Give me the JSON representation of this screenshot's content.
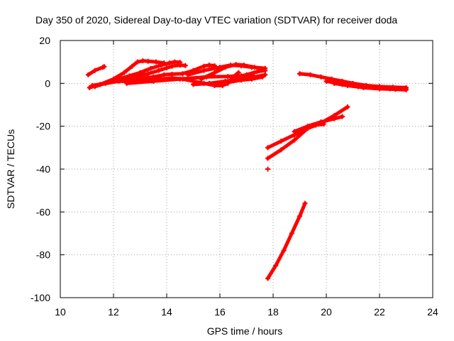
{
  "chart_data": {
    "type": "scatter",
    "title": "Day 350 of 2020, Sidereal Day-to-day VTEC variation (SDTVAR) for receiver doda",
    "xlabel": "GPS time / hours",
    "ylabel": "SDTVAR / TECUs",
    "xlim": [
      10,
      24
    ],
    "ylim": [
      -100,
      20
    ],
    "xticks": [
      10,
      12,
      14,
      16,
      18,
      20,
      22,
      24
    ],
    "yticks": [
      20,
      0,
      -20,
      -40,
      -60,
      -80,
      -100
    ],
    "grid": true,
    "marker": "plus",
    "color": "#ff0000",
    "series": [
      {
        "x": [
          11.05,
          11.3,
          11.6,
          11.65
        ],
        "y": [
          4,
          6,
          7.5,
          7.8
        ]
      },
      {
        "x": [
          11.1,
          11.5,
          12.0,
          12.4,
          12.7,
          12.9,
          13.1,
          13.3,
          13.6,
          13.9
        ],
        "y": [
          -2,
          -0.5,
          2,
          5,
          8,
          10,
          10.5,
          10.3,
          10.0,
          9.5
        ]
      },
      {
        "x": [
          11.2,
          11.7,
          12.2,
          12.6,
          13.0,
          13.4,
          13.8,
          14.1,
          14.3,
          14.5
        ],
        "y": [
          -1,
          0,
          2,
          3.5,
          5,
          7,
          8.5,
          9.5,
          10,
          9.8
        ]
      },
      {
        "x": [
          11.3,
          11.8,
          12.3,
          12.8,
          13.3,
          13.7,
          14.0,
          14.2,
          14.5,
          14.7
        ],
        "y": [
          -1.5,
          0.5,
          1.5,
          3,
          4.5,
          6,
          7.2,
          8,
          8.5,
          8.3
        ]
      },
      {
        "x": [
          11.5,
          12.2,
          12.9,
          13.5,
          13.9,
          14.2,
          14.6,
          15.0,
          15.4,
          15.6,
          15.8
        ],
        "y": [
          -0.5,
          1,
          2,
          3,
          4,
          4.3,
          4.5,
          6,
          8,
          8.5,
          8.2
        ]
      },
      {
        "x": [
          12.0,
          12.6,
          13.2,
          13.8,
          14.2,
          14.6,
          15.0,
          15.4,
          15.8,
          16.1,
          16.3,
          16.5,
          16.7
        ],
        "y": [
          1,
          1,
          1.5,
          2,
          2.5,
          2,
          1,
          0,
          -1,
          -1,
          0,
          3,
          5
        ]
      },
      {
        "x": [
          12.5,
          13.5,
          14.5,
          15.5,
          16.3,
          16.8,
          17.2
        ],
        "y": [
          0,
          1,
          2,
          3,
          3.2,
          3.5,
          4
        ]
      },
      {
        "x": [
          14.8,
          15.4,
          16.0,
          16.4,
          16.8,
          17.2
        ],
        "y": [
          4,
          6,
          7.5,
          8.5,
          8.2,
          7.5
        ]
      },
      {
        "x": [
          15.3,
          15.8,
          16.2,
          16.6,
          16.9,
          17.3,
          17.7
        ],
        "y": [
          2,
          5,
          7.5,
          8.8,
          8.5,
          7.5,
          7
        ]
      },
      {
        "x": [
          15.0,
          15.6,
          16.2,
          16.8,
          17.3,
          17.7
        ],
        "y": [
          -0.5,
          0,
          1,
          2,
          3,
          4
        ]
      },
      {
        "x": [
          15.8,
          16.3,
          16.8,
          17.2,
          17.6
        ],
        "y": [
          -1,
          0.5,
          1.5,
          2,
          3
        ]
      },
      {
        "x": [
          16.6,
          17.0,
          17.4,
          17.7
        ],
        "y": [
          3,
          4,
          5.5,
          6
        ]
      },
      {
        "x": [
          19.0,
          19.4,
          19.8,
          20.2,
          20.6,
          21.0,
          21.5,
          22.0,
          22.5,
          23.0
        ],
        "y": [
          4.5,
          4,
          3,
          2,
          1,
          0,
          -1,
          -1.5,
          -1.8,
          -2
        ]
      },
      {
        "x": [
          20.0,
          20.6,
          21.2,
          21.8,
          22.4,
          23.0
        ],
        "y": [
          1,
          -0.5,
          -1.5,
          -2,
          -2.5,
          -2.8
        ]
      },
      {
        "x": [
          20.3,
          20.8,
          21.4,
          22.0,
          22.6,
          23.0
        ],
        "y": [
          0,
          -1,
          -2,
          -2.5,
          -2.8,
          -3
        ]
      },
      {
        "x": [
          17.8,
          18.3,
          18.8,
          19.3,
          19.8,
          20.3,
          20.8
        ],
        "y": [
          -30,
          -27,
          -24,
          -21,
          -18.5,
          -15,
          -11
        ]
      },
      {
        "x": [
          17.8,
          18.3,
          18.8,
          19.3,
          19.6,
          19.9
        ],
        "y": [
          -35,
          -31,
          -26.5,
          -21,
          -19.5,
          -19
        ]
      },
      {
        "x": [
          18.8,
          19.3,
          19.8,
          20.3,
          20.6
        ],
        "y": [
          -22.5,
          -20,
          -18,
          -16.5,
          -15.5
        ]
      },
      {
        "x": [
          17.8
        ],
        "y": [
          -40
        ]
      },
      {
        "x": [
          17.8,
          18.1,
          18.4,
          18.7,
          19.0,
          19.2
        ],
        "y": [
          -91,
          -85,
          -78,
          -70,
          -62,
          -56
        ]
      }
    ]
  }
}
